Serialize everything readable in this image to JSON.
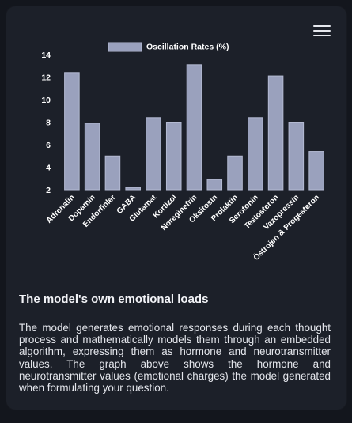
{
  "menu": {
    "icon": "hamburger-menu-icon"
  },
  "chart_data": {
    "type": "bar",
    "series": [
      {
        "name": "Oscillation Rates (%)",
        "values": [
          12.4,
          7.9,
          5.0,
          2.2,
          8.4,
          8.0,
          13.1,
          2.9,
          5.0,
          8.4,
          12.1,
          8.0,
          5.4
        ]
      }
    ],
    "categories": [
      "Adrenalin",
      "Dopamin",
      "Endorfinler",
      "GABA",
      "Glutamat",
      "Kortizol",
      "Noreginefrin",
      "Oksitosin",
      "Prolaktin",
      "Serotonin",
      "Testosteron",
      "Vazopressin",
      "Östrojen & Progesteron"
    ],
    "yticks": [
      "2",
      "4",
      "6",
      "8",
      "10",
      "12",
      "14"
    ],
    "ylim": [
      2,
      14
    ],
    "grid": false,
    "legend_position": "top",
    "colors": {
      "bar": "#9aa1bd",
      "bar_stroke": "#b4bad2",
      "text": "#ffffff"
    }
  },
  "section": {
    "title": "The model's own emotional loads",
    "body": "The model generates emotional responses during each thought process and mathematically models them through an embedded algorithm, expressing them as hormone and neurotransmitter values. The graph above shows the hormone and neurotransmitter values (emotional charges) the model generated when formulating your question."
  }
}
